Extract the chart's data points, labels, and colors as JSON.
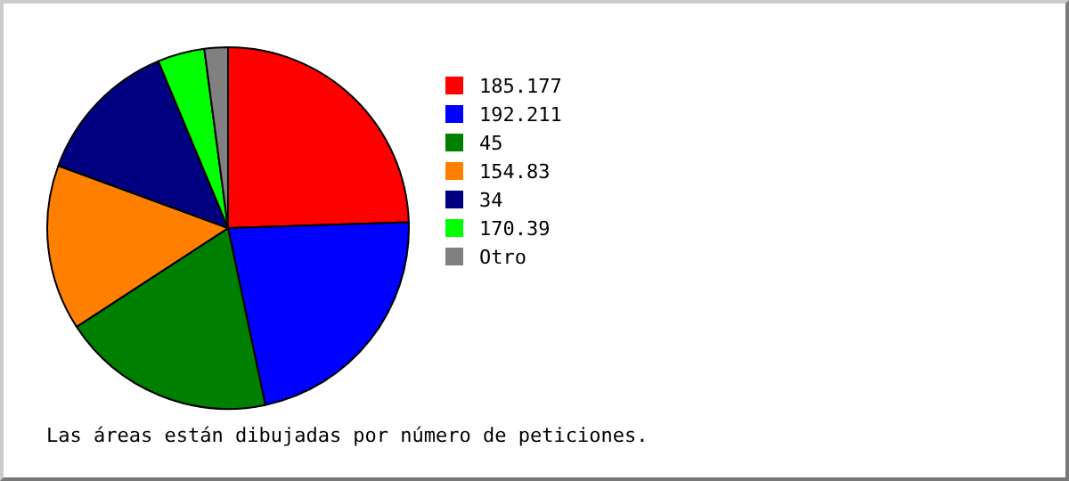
{
  "chart_data": {
    "type": "pie",
    "categories": [
      "185.177",
      "192.211",
      "45",
      "154.83",
      "34",
      "170.39",
      "Otro"
    ],
    "values": [
      24.5,
      22.2,
      19.1,
      14.8,
      13.1,
      4.2,
      2.1
    ],
    "colors": [
      "#ff0000",
      "#0000ff",
      "#008000",
      "#ff8000",
      "#000080",
      "#00ff00",
      "#808080"
    ],
    "legend": "right",
    "annotations": [
      "Las áreas están dibujadas por número de peticiones."
    ]
  }
}
